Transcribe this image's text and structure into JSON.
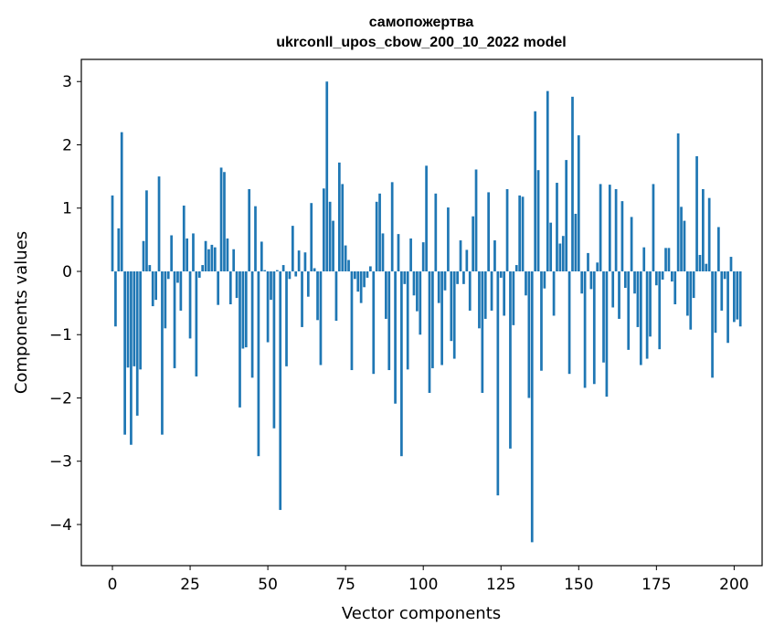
{
  "chart_data": {
    "type": "bar",
    "title_line1": "самопожертва",
    "title_line2": "ukrconll_upos_cbow_200_10_2022 model",
    "xlabel": "Vector components",
    "ylabel": "Components values",
    "xlim": [
      -10,
      209
    ],
    "ylim": [
      -4.65,
      3.35
    ],
    "xticks": [
      0,
      25,
      50,
      75,
      100,
      125,
      150,
      175,
      200
    ],
    "xtick_labels": [
      "0",
      "25",
      "50",
      "75",
      "100",
      "125",
      "150",
      "175",
      "200"
    ],
    "yticks": [
      3,
      2,
      1,
      0,
      -1,
      -2,
      -3,
      -4
    ],
    "ytick_labels": [
      "3",
      "2",
      "1",
      "0",
      "−1",
      "−2",
      "−3",
      "−4"
    ],
    "bar_color": "#1f77b4",
    "grid": false,
    "values": [
      1.2,
      -0.87,
      0.68,
      2.2,
      -2.58,
      -1.52,
      -2.74,
      -1.5,
      -2.28,
      -1.55,
      0.48,
      1.28,
      0.1,
      -0.55,
      -0.45,
      1.5,
      -2.58,
      -0.9,
      -0.12,
      0.57,
      -1.53,
      -0.18,
      -0.62,
      1.04,
      0.52,
      -1.06,
      0.6,
      -1.66,
      -0.1,
      0.1,
      0.48,
      0.35,
      0.42,
      0.38,
      -0.53,
      1.64,
      1.57,
      0.52,
      -0.52,
      0.35,
      -0.42,
      -2.15,
      -1.22,
      -1.2,
      1.3,
      -1.68,
      1.03,
      -2.92,
      0.47,
      0.02,
      -1.12,
      -0.45,
      -2.48,
      0.02,
      -3.77,
      0.1,
      -1.5,
      -0.12,
      0.72,
      -0.08,
      0.33,
      -0.88,
      0.3,
      -0.4,
      1.08,
      0.05,
      -0.77,
      -1.48,
      1.31,
      3.0,
      1.1,
      0.8,
      -0.78,
      1.72,
      1.38,
      0.41,
      0.18,
      -1.56,
      -0.12,
      -0.32,
      -0.5,
      -0.25,
      -0.1,
      0.08,
      -1.62,
      1.1,
      1.23,
      0.6,
      -0.75,
      -1.56,
      1.41,
      -2.09,
      0.59,
      -2.92,
      -0.2,
      -1.55,
      0.52,
      -0.38,
      -0.63,
      -1.0,
      0.46,
      1.67,
      -1.92,
      -1.53,
      1.23,
      -0.5,
      -1.48,
      -0.3,
      1.01,
      -1.1,
      -1.38,
      -0.2,
      0.49,
      -0.2,
      0.34,
      -0.62,
      0.87,
      1.61,
      -0.9,
      -1.92,
      -0.75,
      1.25,
      -0.62,
      0.49,
      -3.54,
      -0.1,
      -0.7,
      1.3,
      -2.8,
      -0.85,
      0.1,
      1.2,
      1.18,
      -0.38,
      -2.0,
      -4.28,
      2.53,
      1.6,
      -1.57,
      -0.27,
      2.85,
      0.77,
      -0.7,
      1.4,
      0.44,
      0.56,
      1.76,
      -1.62,
      2.76,
      0.91,
      2.15,
      -0.35,
      -1.84,
      0.29,
      -0.28,
      -1.78,
      0.14,
      1.38,
      -1.44,
      -1.98,
      1.37,
      -0.57,
      1.3,
      -0.75,
      1.11,
      -0.26,
      -1.24,
      0.86,
      -0.35,
      -0.88,
      -1.48,
      0.38,
      -1.38,
      -1.03,
      1.38,
      -0.22,
      -1.23,
      -0.13,
      0.37,
      0.37,
      -0.16,
      -0.52,
      2.18,
      1.02,
      0.8,
      -0.7,
      -0.92,
      -0.42,
      1.82,
      0.26,
      1.3,
      0.12,
      1.16,
      -1.68,
      -0.97,
      0.7,
      -0.62,
      -0.12,
      -1.13,
      0.23,
      -0.8,
      -0.76,
      -0.87
    ]
  }
}
